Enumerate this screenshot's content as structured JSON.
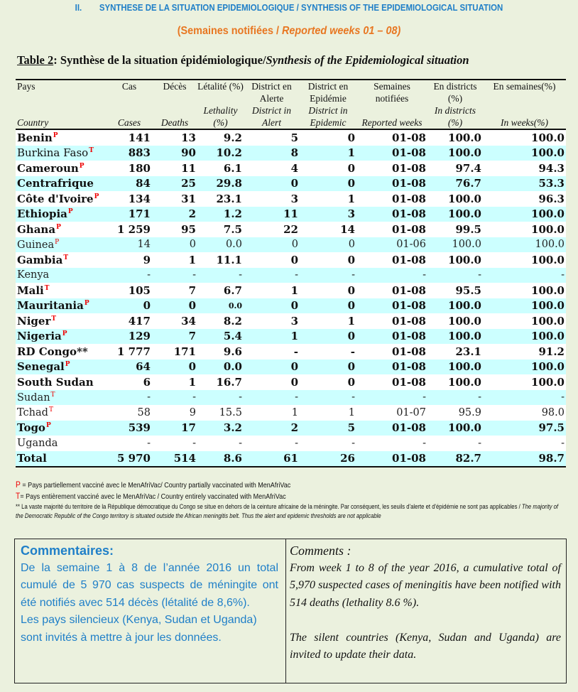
{
  "section": {
    "number": "II.",
    "title": "SYNTHESE DE LA SITUATION EPIDEMIOLOGIQUE / SYNTHESIS OF THE EPIDEMIOLOGICAL SITUATION"
  },
  "reported_weeks": {
    "fr": "(Semaines notifiées / ",
    "en": "Reported weeks 01 – 08)"
  },
  "table_title": {
    "label": "Table 2",
    "fr": ": Synthèse de la situation épidémiologique/",
    "en": "Synthesis of the Epidemiological situation"
  },
  "headers": [
    {
      "fr": "Pays",
      "en": "Country"
    },
    {
      "fr": "Cas",
      "en": "Cases"
    },
    {
      "fr": "Décès",
      "en": "Deaths"
    },
    {
      "fr": "Létalité (%)",
      "en": "Lethality (%)"
    },
    {
      "fr": "District en Alerte",
      "en": "District in Alert"
    },
    {
      "fr": "District en Epidémie",
      "en": "District in Epidemic"
    },
    {
      "fr": "Semaines notifiées",
      "en": "Reported weeks"
    },
    {
      "fr": "En districts (%)",
      "en": "In districts (%)"
    },
    {
      "fr": "En semaines(%)",
      "en": "In weeks(%)"
    }
  ],
  "rows": [
    {
      "country": "Benin",
      "mark": "P",
      "values": [
        "141",
        "13",
        "9.2",
        "5",
        "0",
        "01-08",
        "100.0",
        "100.0"
      ]
    },
    {
      "country": "Burkina Faso",
      "mark": "T",
      "values": [
        "883",
        "90",
        "10.2",
        "8",
        "1",
        "01-08",
        "100.0",
        "100.0"
      ]
    },
    {
      "country": "Cameroun",
      "mark": "P",
      "values": [
        "180",
        "11",
        "6.1",
        "4",
        "0",
        "01-08",
        "97.4",
        "94.3"
      ]
    },
    {
      "country": "Centrafrique",
      "mark": "",
      "values": [
        "84",
        "25",
        "29.8",
        "0",
        "0",
        "01-08",
        "76.7",
        "53.3"
      ]
    },
    {
      "country": "Côte d'Ivoire",
      "mark": "P",
      "values": [
        "134",
        "31",
        "23.1",
        "3",
        "1",
        "01-08",
        "100.0",
        "96.3"
      ]
    },
    {
      "country": "Ethiopia",
      "mark": "P",
      "values": [
        "171",
        "2",
        "1.2",
        "11",
        "3",
        "01-08",
        "100.0",
        "100.0"
      ]
    },
    {
      "country": "Ghana",
      "mark": "P",
      "values": [
        "1 259",
        "95",
        "7.5",
        "22",
        "14",
        "01-08",
        "99.5",
        "100.0"
      ]
    },
    {
      "country": "Guinea",
      "mark": "P",
      "values": [
        "14",
        "0",
        "0.0",
        "0",
        "0",
        "01-06",
        "100.0",
        "100.0"
      ]
    },
    {
      "country": "Gambia",
      "mark": "T",
      "values": [
        "9",
        "1",
        "11.1",
        "0",
        "0",
        "01-08",
        "100.0",
        "100.0"
      ]
    },
    {
      "country": "Kenya",
      "mark": "",
      "values": [
        "-",
        "-",
        "-",
        "-",
        "-",
        "-",
        "-",
        "-"
      ]
    },
    {
      "country": "Mali",
      "mark": "T",
      "values": [
        "105",
        "7",
        "6.7",
        "1",
        "0",
        "01-08",
        "95.5",
        "100.0"
      ]
    },
    {
      "country": "Mauritania",
      "mark": "P",
      "values": [
        "0",
        "0",
        "0.0",
        "0",
        "0",
        "01-08",
        "100.0",
        "100.0"
      ]
    },
    {
      "country": "Niger",
      "mark": "T",
      "values": [
        "417",
        "34",
        "8.2",
        "3",
        "1",
        "01-08",
        "100.0",
        "100.0"
      ]
    },
    {
      "country": "Nigeria",
      "mark": "P",
      "values": [
        "129",
        "7",
        "5.4",
        "1",
        "0",
        "01-08",
        "100.0",
        "100.0"
      ]
    },
    {
      "country": "RD Congo**",
      "mark": "",
      "values": [
        "1 777",
        "171",
        "9.6",
        "-",
        "-",
        "01-08",
        "23.1",
        "91.2"
      ]
    },
    {
      "country": "Senegal",
      "mark": "P",
      "values": [
        "64",
        "0",
        "0.0",
        "0",
        "0",
        "01-08",
        "100.0",
        "100.0"
      ]
    },
    {
      "country": "South Sudan",
      "mark": "",
      "values": [
        "6",
        "1",
        "16.7",
        "0",
        "0",
        "01-08",
        "100.0",
        "100.0"
      ]
    },
    {
      "country": "Sudan",
      "mark": "T",
      "values": [
        "-",
        "-",
        "-",
        "-",
        "-",
        "-",
        "-",
        "-"
      ]
    },
    {
      "country": "Tchad",
      "mark": "T",
      "values": [
        "58",
        "9",
        "15.5",
        "1",
        "1",
        "01-07",
        "95.9",
        "98.0"
      ]
    },
    {
      "country": "Togo",
      "mark": "P",
      "values": [
        "539",
        "17",
        "3.2",
        "2",
        "5",
        "01-08",
        "100.0",
        "97.5"
      ]
    },
    {
      "country": "Uganda",
      "mark": "",
      "values": [
        "-",
        "-",
        "-",
        "-",
        "-",
        "-",
        "-",
        "-"
      ]
    },
    {
      "country": "Total",
      "mark": "",
      "values": [
        "5 970",
        "514",
        "8.6",
        "61",
        "26",
        "01-08",
        "82.7",
        "98.7"
      ]
    }
  ],
  "notes": {
    "p_mark": "P",
    "p_text": " = Pays partiellement vacciné avec le MenAfriVac/ Country partially  vaccinated with MenAfriVac",
    "t_mark": "T",
    "t_text": "= Pays entièrement vacciné avec le MenAfriVac / Country entirely  vaccinated with MenAfriVac",
    "drc_fr": "** La vaste majorité du territoire de la République démocratique du Congo se situe en dehors de la ceinture africaine de la méningite. Par conséquent, les seuils d'alerte et d'épidémie ne sont pas applicables /",
    "drc_en": "The majority of the Democratic Republic of the Congo territory is situated outside the African meningitis belt. Thus the alert and epidemic thresholds are not applicable"
  },
  "comments": {
    "fr_title": "Commentaires:",
    "fr_p1": "De la semaine 1 à 8 de l’année 2016 un total cumulé de 5 970 cas suspects de méningite ont été notifiés avec 514 décès (létalité de 8,6%).",
    "fr_p2": "Les pays silencieux (Kenya, Sudan et Uganda) sont invités à mettre à jour les données.",
    "en_title": "Comments :",
    "en_p1": "From week 1 to 8 of the year 2016, a cumulative total of 5,970 suspected cases of meningitis have been notified with 514 deaths (lethality 8.6 %).",
    "en_p2": "The silent countries (Kenya, Sudan and Uganda) are invited to update their data."
  },
  "colors": {
    "section": "#1f7fc8",
    "weeks": "#e87722",
    "row_alt": "#ccffff",
    "mark": "#ee0000",
    "page_bg": "#ebf1de"
  }
}
